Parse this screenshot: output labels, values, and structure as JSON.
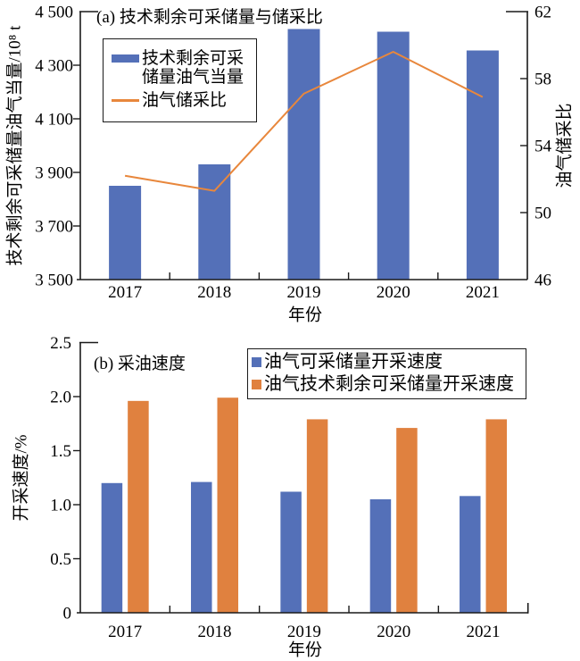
{
  "page": {
    "background": "#ffffff",
    "text_color": "#000000"
  },
  "colors": {
    "bar_blue": "#5470b8",
    "bar_orange": "#e0813f",
    "line_orange": "#e8873c",
    "axis": "#1a1a1a"
  },
  "chart_data": [
    {
      "type": "bar",
      "panel_label": "(a) 技术剩余可采储量与储采比",
      "categories": [
        "2017",
        "2018",
        "2019",
        "2020",
        "2021"
      ],
      "series": [
        {
          "name": "技术剩余可采储量油气当量",
          "type": "bar",
          "axis": "left",
          "color": "#5470b8",
          "values": [
            3850,
            3930,
            4435,
            4425,
            4355
          ]
        },
        {
          "name": "油气储采比",
          "type": "line",
          "axis": "right",
          "color": "#e8873c",
          "values": [
            52.2,
            51.3,
            57.1,
            59.6,
            56.9
          ]
        }
      ],
      "legend": {
        "bar_label_line1": "技术剩余可采",
        "bar_label_line2": "储量油气当量",
        "line_label": "油气储采比"
      },
      "left_axis": {
        "label": "技术剩余可采储量油气当量/10⁸ t",
        "min": 3500,
        "max": 4500,
        "step": 200,
        "tick_labels": [
          "3 500",
          "3 700",
          "3 900",
          "4 100",
          "4 300",
          "4 500"
        ]
      },
      "right_axis": {
        "label": "油气储采比",
        "min": 46,
        "max": 62,
        "step": 4,
        "tick_labels": [
          "46",
          "50",
          "54",
          "58",
          "62"
        ]
      },
      "xlabel": "年份",
      "grid": false,
      "legend_position": "upper-left-inside"
    },
    {
      "type": "bar",
      "panel_label": "(b) 采油速度",
      "categories": [
        "2017",
        "2018",
        "2019",
        "2020",
        "2021"
      ],
      "series": [
        {
          "name": "油气可采储量开采速度",
          "type": "bar",
          "color": "#5470b8",
          "values": [
            1.2,
            1.21,
            1.12,
            1.05,
            1.08
          ]
        },
        {
          "name": "油气技术剩余可采储量开采速度",
          "type": "bar",
          "color": "#e0813f",
          "values": [
            1.96,
            1.99,
            1.79,
            1.71,
            1.79
          ]
        }
      ],
      "left_axis": {
        "label": "开采速度/%",
        "min": 0,
        "max": 2.5,
        "step": 0.5,
        "tick_labels": [
          "0",
          "0.5",
          "1.0",
          "1.5",
          "2.0",
          "2.5"
        ]
      },
      "xlabel": "年份",
      "grid": false,
      "legend_position": "upper-right-inside"
    }
  ]
}
